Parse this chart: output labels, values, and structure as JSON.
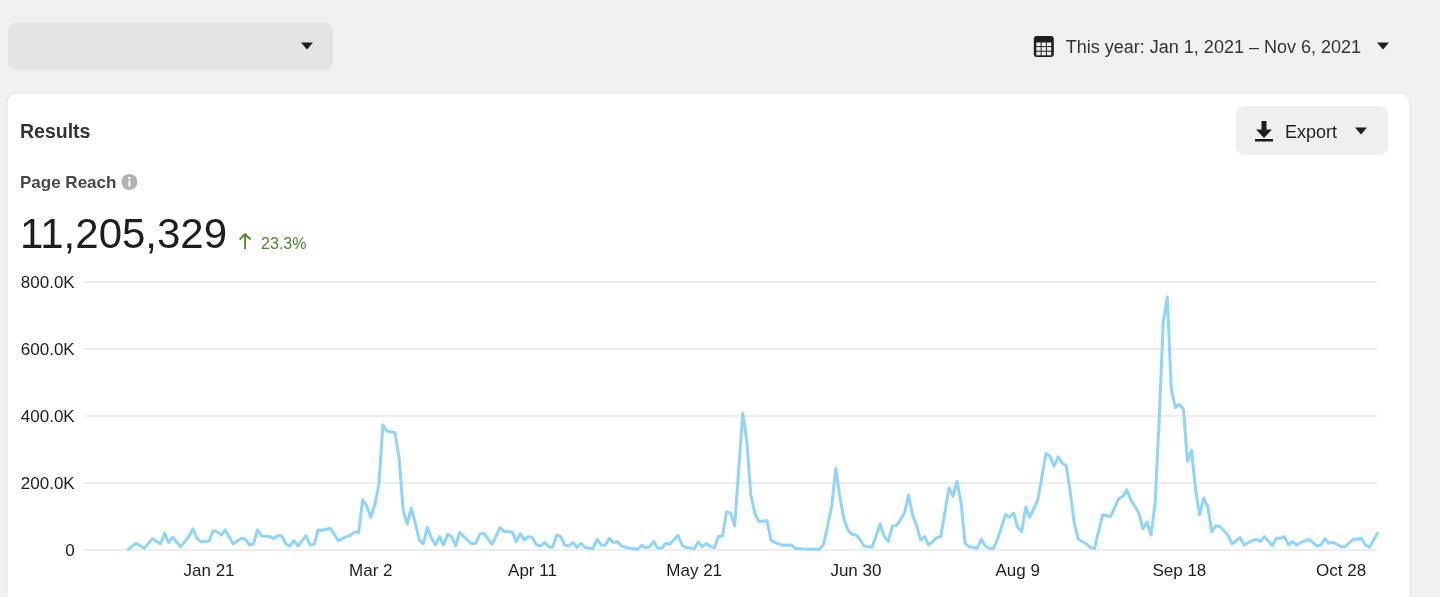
{
  "chart_data": {
    "type": "line",
    "title": "Results",
    "subtitle": "Page Reach",
    "annotations": [
      "This year: Jan 1, 2021 – Nov 6, 2021",
      "Export",
      "11,205,329",
      "23.3%"
    ],
    "xlim": [
      "2020-12-21",
      "2021-11-06"
    ],
    "xticks": [
      {
        "value": "2021-01-21",
        "label": "Jan 21"
      },
      {
        "value": "2021-03-02",
        "label": "Mar 2"
      },
      {
        "value": "2021-04-11",
        "label": "Apr 11"
      },
      {
        "value": "2021-05-21",
        "label": "May 21"
      },
      {
        "value": "2021-06-30",
        "label": "Jun 30"
      },
      {
        "value": "2021-08-09",
        "label": "Aug 9"
      },
      {
        "value": "2021-09-18",
        "label": "Sep 18"
      },
      {
        "value": "2021-10-28",
        "label": "Oct 28"
      }
    ],
    "ylim": [
      0,
      800000
    ],
    "yticks": [
      0,
      {
        "value": 200000,
        "label": "200.0K"
      },
      {
        "value": 400000,
        "label": "400.0K"
      },
      {
        "value": 600000,
        "label": "600.0K"
      },
      {
        "value": 800000,
        "label": "800.0K"
      }
    ],
    "grid": "y",
    "line_style": "solid",
    "series": [
      {
        "color": "#8fd5fb",
        "x": [
          "2021-01-01",
          "2021-01-03",
          "2021-01-05",
          "2021-01-07",
          "2021-01-09",
          "2021-01-10",
          "2021-01-11",
          "2021-01-12",
          "2021-01-14",
          "2021-01-16",
          "2021-01-17",
          "2021-01-18",
          "2021-01-19",
          "2021-01-21",
          "2021-01-22",
          "2021-01-23",
          "2021-01-24",
          "2021-01-25",
          "2021-01-27",
          "2021-01-29",
          "2021-01-30",
          "2021-01-31",
          "2021-02-01",
          "2021-02-02",
          "2021-02-03",
          "2021-02-05",
          "2021-02-06",
          "2021-02-07",
          "2021-02-08",
          "2021-02-09",
          "2021-02-10",
          "2021-02-11",
          "2021-02-12",
          "2021-02-14",
          "2021-02-15",
          "2021-02-16",
          "2021-02-17",
          "2021-02-18",
          "2021-02-20",
          "2021-02-22",
          "2021-02-24",
          "2021-02-25",
          "2021-02-26",
          "2021-02-27",
          "2021-02-28",
          "2021-03-01",
          "2021-03-02",
          "2021-03-03",
          "2021-03-04",
          "2021-03-05",
          "2021-03-06",
          "2021-03-08",
          "2021-03-09",
          "2021-03-10",
          "2021-03-11",
          "2021-03-12",
          "2021-03-13",
          "2021-03-14",
          "2021-03-15",
          "2021-03-16",
          "2021-03-17",
          "2021-03-18",
          "2021-03-19",
          "2021-03-20",
          "2021-03-21",
          "2021-03-22",
          "2021-03-23",
          "2021-03-24",
          "2021-03-25",
          "2021-03-27",
          "2021-03-28",
          "2021-03-29",
          "2021-03-30",
          "2021-04-01",
          "2021-04-03",
          "2021-04-04",
          "2021-04-06",
          "2021-04-07",
          "2021-04-08",
          "2021-04-09",
          "2021-04-10",
          "2021-04-11",
          "2021-04-12",
          "2021-04-13",
          "2021-04-14",
          "2021-04-15",
          "2021-04-16",
          "2021-04-17",
          "2021-04-18",
          "2021-04-19",
          "2021-04-20",
          "2021-04-21",
          "2021-04-22",
          "2021-04-23",
          "2021-04-24",
          "2021-04-26",
          "2021-04-27",
          "2021-04-28",
          "2021-04-29",
          "2021-04-30",
          "2021-05-01",
          "2021-05-02",
          "2021-05-03",
          "2021-05-05",
          "2021-05-07",
          "2021-05-08",
          "2021-05-09",
          "2021-05-10",
          "2021-05-11",
          "2021-05-12",
          "2021-05-13",
          "2021-05-14",
          "2021-05-15",
          "2021-05-17",
          "2021-05-18",
          "2021-05-19",
          "2021-05-21",
          "2021-05-22",
          "2021-05-23",
          "2021-05-24",
          "2021-05-25",
          "2021-05-26",
          "2021-05-27",
          "2021-05-28",
          "2021-05-29",
          "2021-05-30",
          "2021-05-31",
          "2021-06-01",
          "2021-06-02",
          "2021-06-03",
          "2021-06-04",
          "2021-06-05",
          "2021-06-06",
          "2021-06-08",
          "2021-06-09",
          "2021-06-10",
          "2021-06-12",
          "2021-06-14",
          "2021-06-15",
          "2021-06-17",
          "2021-06-19",
          "2021-06-21",
          "2021-06-22",
          "2021-06-24",
          "2021-06-25",
          "2021-06-26",
          "2021-06-27",
          "2021-06-28",
          "2021-06-29",
          "2021-06-30",
          "2021-07-01",
          "2021-07-02",
          "2021-07-03",
          "2021-07-04",
          "2021-07-06",
          "2021-07-07",
          "2021-07-08",
          "2021-07-09",
          "2021-07-10",
          "2021-07-11",
          "2021-07-12",
          "2021-07-13",
          "2021-07-14",
          "2021-07-15",
          "2021-07-16",
          "2021-07-17",
          "2021-07-18",
          "2021-07-19",
          "2021-07-20",
          "2021-07-21",
          "2021-07-23",
          "2021-07-24",
          "2021-07-25",
          "2021-07-26",
          "2021-07-27",
          "2021-07-28",
          "2021-07-30",
          "2021-07-31",
          "2021-08-01",
          "2021-08-02",
          "2021-08-03",
          "2021-08-04",
          "2021-08-06",
          "2021-08-07",
          "2021-08-08",
          "2021-08-09",
          "2021-08-10",
          "2021-08-11",
          "2021-08-12",
          "2021-08-14",
          "2021-08-16",
          "2021-08-17",
          "2021-08-18",
          "2021-08-19",
          "2021-08-20",
          "2021-08-21",
          "2021-08-22",
          "2021-08-23",
          "2021-08-24",
          "2021-08-26",
          "2021-08-27",
          "2021-08-28",
          "2021-08-30",
          "2021-09-01",
          "2021-09-03",
          "2021-09-04",
          "2021-09-05",
          "2021-09-06",
          "2021-09-08",
          "2021-09-09",
          "2021-09-10",
          "2021-09-11",
          "2021-09-12",
          "2021-09-13",
          "2021-09-14",
          "2021-09-15",
          "2021-09-16",
          "2021-09-17",
          "2021-09-18",
          "2021-09-19",
          "2021-09-20",
          "2021-09-21",
          "2021-09-22",
          "2021-09-23",
          "2021-09-24",
          "2021-09-25",
          "2021-09-26",
          "2021-09-27",
          "2021-09-28",
          "2021-09-30",
          "2021-10-01",
          "2021-10-03",
          "2021-10-04",
          "2021-10-06",
          "2021-10-07",
          "2021-10-08",
          "2021-10-09",
          "2021-10-11",
          "2021-10-12",
          "2021-10-13",
          "2021-10-14",
          "2021-10-15",
          "2021-10-16",
          "2021-10-17",
          "2021-10-18",
          "2021-10-20",
          "2021-10-22",
          "2021-10-23",
          "2021-10-24",
          "2021-10-25",
          "2021-10-26",
          "2021-10-28",
          "2021-10-29",
          "2021-10-31",
          "2021-11-01",
          "2021-11-02",
          "2021-11-03",
          "2021-11-04",
          "2021-11-06"
        ],
        "values": [
          2000,
          20000,
          5000,
          34000,
          18000,
          50000,
          22000,
          38000,
          10000,
          40000,
          63000,
          35000,
          25000,
          27000,
          57000,
          55000,
          44000,
          60000,
          18000,
          35000,
          32000,
          15000,
          18000,
          60000,
          42000,
          40000,
          34000,
          43000,
          42000,
          18000,
          12000,
          28000,
          12000,
          43000,
          15000,
          17000,
          60000,
          59000,
          65000,
          28000,
          40000,
          44000,
          54000,
          52000,
          150000,
          132000,
          98000,
          135000,
          195000,
          373000,
          355000,
          350000,
          275000,
          120000,
          77000,
          125000,
          80000,
          30000,
          18000,
          68000,
          35000,
          15000,
          40000,
          15000,
          47000,
          40000,
          12000,
          53000,
          40000,
          18000,
          20000,
          48000,
          50000,
          17000,
          67000,
          55000,
          54000,
          25000,
          48000,
          30000,
          40000,
          37000,
          15000,
          12000,
          22000,
          10000,
          8000,
          45000,
          40000,
          14000,
          12000,
          22000,
          8000,
          20000,
          8000,
          4000,
          32000,
          15000,
          14000,
          35000,
          22000,
          25000,
          12000,
          5000,
          2000,
          14000,
          7000,
          10000,
          25000,
          5000,
          6000,
          20000,
          17000,
          44000,
          14000,
          8000,
          4000,
          24000,
          10000,
          20000,
          10000,
          7000,
          40000,
          42000,
          114000,
          110000,
          72000,
          240000,
          408000,
          325000,
          165000,
          110000,
          85000,
          87000,
          30000,
          22000,
          14000,
          15000,
          5000,
          3000,
          2000,
          2000,
          17000,
          130000,
          243000,
          160000,
          95000,
          60000,
          47000,
          45000,
          32000,
          12000,
          10000,
          8000,
          78000,
          40000,
          25000,
          72000,
          73000,
          90000,
          110000,
          164000,
          105000,
          72000,
          30000,
          40000,
          15000,
          25000,
          37000,
          40000,
          185000,
          160000,
          205000,
          140000,
          20000,
          10000,
          5000,
          32000,
          12000,
          5000,
          4000,
          32000,
          105000,
          98000,
          110000,
          68000,
          55000,
          128000,
          98000,
          150000,
          288000,
          280000,
          250000,
          278000,
          260000,
          252000,
          175000,
          80000,
          32000,
          18000,
          7000,
          4000,
          105000,
          100000,
          153000,
          160000,
          180000,
          150000,
          110000,
          63000,
          83000,
          45000,
          140000,
          390000,
          680000,
          755000,
          480000,
          425000,
          435000,
          420000,
          265000,
          298000,
          180000,
          105000,
          155000,
          130000,
          55000,
          72000,
          70000,
          45000,
          18000,
          37000,
          15000,
          28000,
          32000,
          25000,
          40000,
          13000,
          36000,
          35000,
          40000,
          15000,
          25000,
          15000,
          22000,
          32000,
          12000,
          15000,
          34000,
          20000,
          23000,
          10000,
          10000,
          32000,
          32000,
          35000,
          15000,
          8000,
          50000
        ]
      }
    ]
  }
}
